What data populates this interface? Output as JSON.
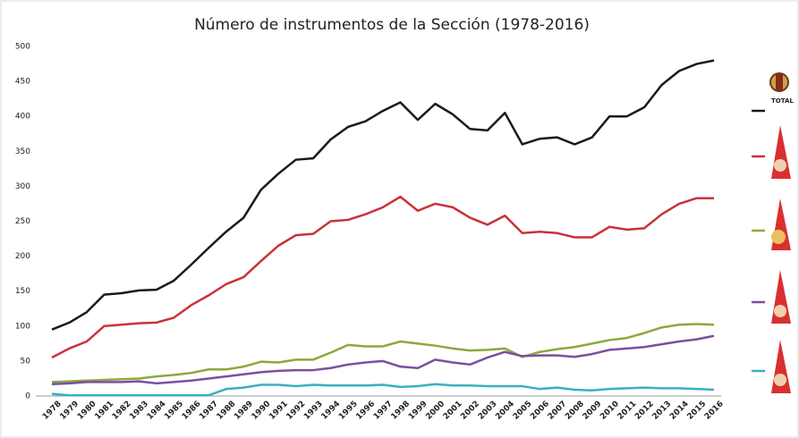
{
  "chart_data": {
    "type": "line",
    "title": "Número de instrumentos de la Sección (1978-2016)",
    "categories": [
      "1978",
      "1979",
      "1980",
      "1981",
      "1982",
      "1983",
      "1984",
      "1985",
      "1986",
      "1987",
      "1988",
      "1989",
      "1990",
      "1991",
      "1992",
      "1993",
      "1994",
      "1995",
      "1996",
      "1997",
      "1998",
      "1999",
      "2000",
      "2001",
      "2002",
      "2003",
      "2004",
      "2005",
      "2006",
      "2007",
      "2008",
      "2009",
      "2010",
      "2011",
      "2012",
      "2013",
      "2014",
      "2015",
      "2016"
    ],
    "series": [
      {
        "name": "TOTAL",
        "color": "#1a1a1a",
        "values": [
          95,
          105,
          120,
          145,
          147,
          151,
          152,
          165,
          188,
          212,
          235,
          255,
          295,
          318,
          338,
          340,
          367,
          385,
          393,
          408,
          420,
          395,
          418,
          403,
          382,
          380,
          405,
          360,
          368,
          370,
          360,
          370,
          400,
          400,
          413,
          445,
          465,
          475,
          480
        ]
      },
      {
        "color": "#c8323a",
        "values": [
          55,
          68,
          78,
          100,
          102,
          104,
          105,
          112,
          130,
          144,
          160,
          170,
          193,
          215,
          230,
          232,
          250,
          252,
          260,
          270,
          285,
          265,
          275,
          270,
          255,
          245,
          258,
          233,
          235,
          233,
          227,
          227,
          242,
          238,
          240,
          260,
          275,
          283,
          283
        ]
      },
      {
        "color": "#8aaa3a",
        "values": [
          20,
          21,
          22,
          23,
          24,
          25,
          28,
          30,
          33,
          38,
          38,
          42,
          49,
          48,
          52,
          52,
          62,
          73,
          71,
          71,
          78,
          75,
          72,
          68,
          65,
          66,
          68,
          56,
          63,
          67,
          70,
          75,
          80,
          83,
          90,
          98,
          102,
          103,
          102
        ]
      },
      {
        "color": "#7b4fa0",
        "values": [
          17,
          18,
          20,
          20,
          20,
          21,
          18,
          20,
          22,
          25,
          28,
          31,
          34,
          36,
          37,
          37,
          40,
          45,
          48,
          50,
          42,
          40,
          52,
          48,
          45,
          55,
          63,
          57,
          58,
          58,
          56,
          60,
          66,
          68,
          70,
          74,
          78,
          81,
          86
        ]
      },
      {
        "color": "#3bb0c0",
        "values": [
          3,
          1,
          1,
          1,
          1,
          1,
          1,
          1,
          1,
          1,
          10,
          12,
          16,
          16,
          14,
          16,
          15,
          15,
          15,
          16,
          13,
          14,
          17,
          15,
          15,
          14,
          14,
          14,
          10,
          12,
          9,
          8,
          10,
          11,
          12,
          11,
          11,
          10,
          9
        ]
      }
    ],
    "ylim": [
      0,
      500
    ],
    "yticks": [
      0,
      50,
      100,
      150,
      200,
      250,
      300,
      350,
      400,
      450,
      500
    ],
    "grid": false
  }
}
